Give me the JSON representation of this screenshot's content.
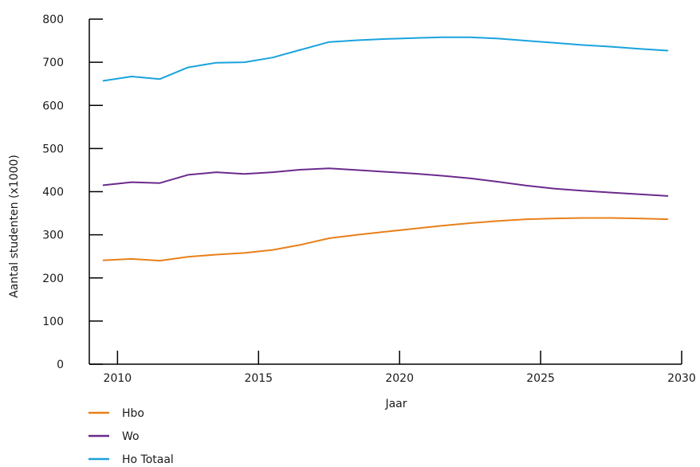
{
  "chart_data": {
    "type": "line",
    "xlabel": "Jaar",
    "ylabel": "Aantal studenten (x1000)",
    "xlim": [
      2009,
      2030
    ],
    "ylim": [
      0,
      800
    ],
    "xticks": [
      2010,
      2015,
      2020,
      2025,
      2030
    ],
    "yticks": [
      0,
      100,
      200,
      300,
      400,
      500,
      600,
      700,
      800
    ],
    "grid": false,
    "legend_position": "bottom-left",
    "series": [
      {
        "name": "Hbo",
        "color": "#e8801a",
        "x": [
          2009.5,
          2010.5,
          2011.5,
          2012.5,
          2013.5,
          2014.5,
          2015.5,
          2016.5,
          2017.5,
          2018.5,
          2019.5,
          2020.5,
          2021.5,
          2022.5,
          2023.5,
          2024.5,
          2025.5,
          2026.5,
          2027.5,
          2028.5,
          2029.5
        ],
        "values": [
          241,
          244,
          240,
          249,
          254,
          258,
          265,
          277,
          292,
          300,
          307,
          314,
          321,
          327,
          332,
          336,
          338,
          339,
          339,
          338,
          336
        ]
      },
      {
        "name": "Wo",
        "color": "#6b2a8c",
        "x": [
          2009.5,
          2010.5,
          2011.5,
          2012.5,
          2013.5,
          2014.5,
          2015.5,
          2016.5,
          2017.5,
          2018.5,
          2019.5,
          2020.5,
          2021.5,
          2022.5,
          2023.5,
          2024.5,
          2025.5,
          2026.5,
          2027.5,
          2028.5,
          2029.5
        ],
        "values": [
          415,
          422,
          420,
          439,
          445,
          441,
          445,
          451,
          454,
          450,
          446,
          442,
          437,
          431,
          423,
          414,
          407,
          402,
          398,
          394,
          390
        ]
      },
      {
        "name": "Ho Totaal",
        "color": "#1aa3dd",
        "x": [
          2009.5,
          2010.5,
          2011.5,
          2012.5,
          2013.5,
          2014.5,
          2015.5,
          2016.5,
          2017.5,
          2018.5,
          2019.5,
          2020.5,
          2021.5,
          2022.5,
          2023.5,
          2024.5,
          2025.5,
          2026.5,
          2027.5,
          2028.5,
          2029.5
        ],
        "values": [
          657,
          667,
          661,
          688,
          699,
          700,
          711,
          729,
          747,
          751,
          754,
          756,
          758,
          758,
          755,
          750,
          745,
          740,
          736,
          731,
          727
        ]
      }
    ]
  }
}
